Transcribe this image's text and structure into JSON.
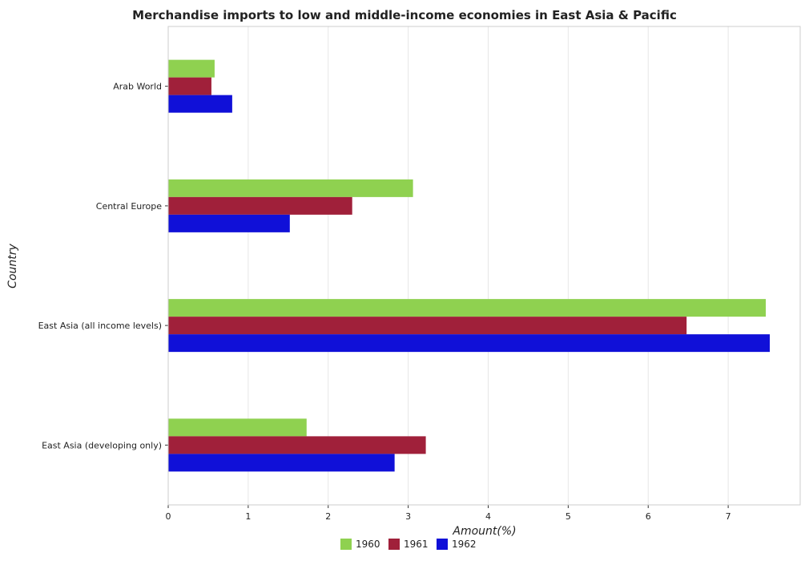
{
  "chart_data": {
    "type": "bar",
    "orientation": "horizontal",
    "title": "Merchandise imports to low and middle-income economies in East Asia & Pacific",
    "xlabel": "Amount(%)",
    "ylabel": "Country",
    "categories": [
      "Arab World",
      "Central Europe",
      "East Asia (all income levels)",
      "East Asia (developing only)"
    ],
    "series": [
      {
        "name": "1960",
        "color": "#8fd150",
        "values": [
          0.58,
          3.06,
          7.47,
          1.73
        ]
      },
      {
        "name": "1961",
        "color": "#a0203a",
        "values": [
          0.54,
          2.3,
          6.48,
          3.22
        ]
      },
      {
        "name": "1962",
        "color": "#1010d8",
        "values": [
          0.8,
          1.52,
          7.52,
          2.83
        ]
      }
    ],
    "xlim": [
      0,
      7.9
    ],
    "xticks": [
      0,
      1,
      2,
      3,
      4,
      5,
      6,
      7
    ],
    "grid": true,
    "legend_position": "bottom"
  }
}
